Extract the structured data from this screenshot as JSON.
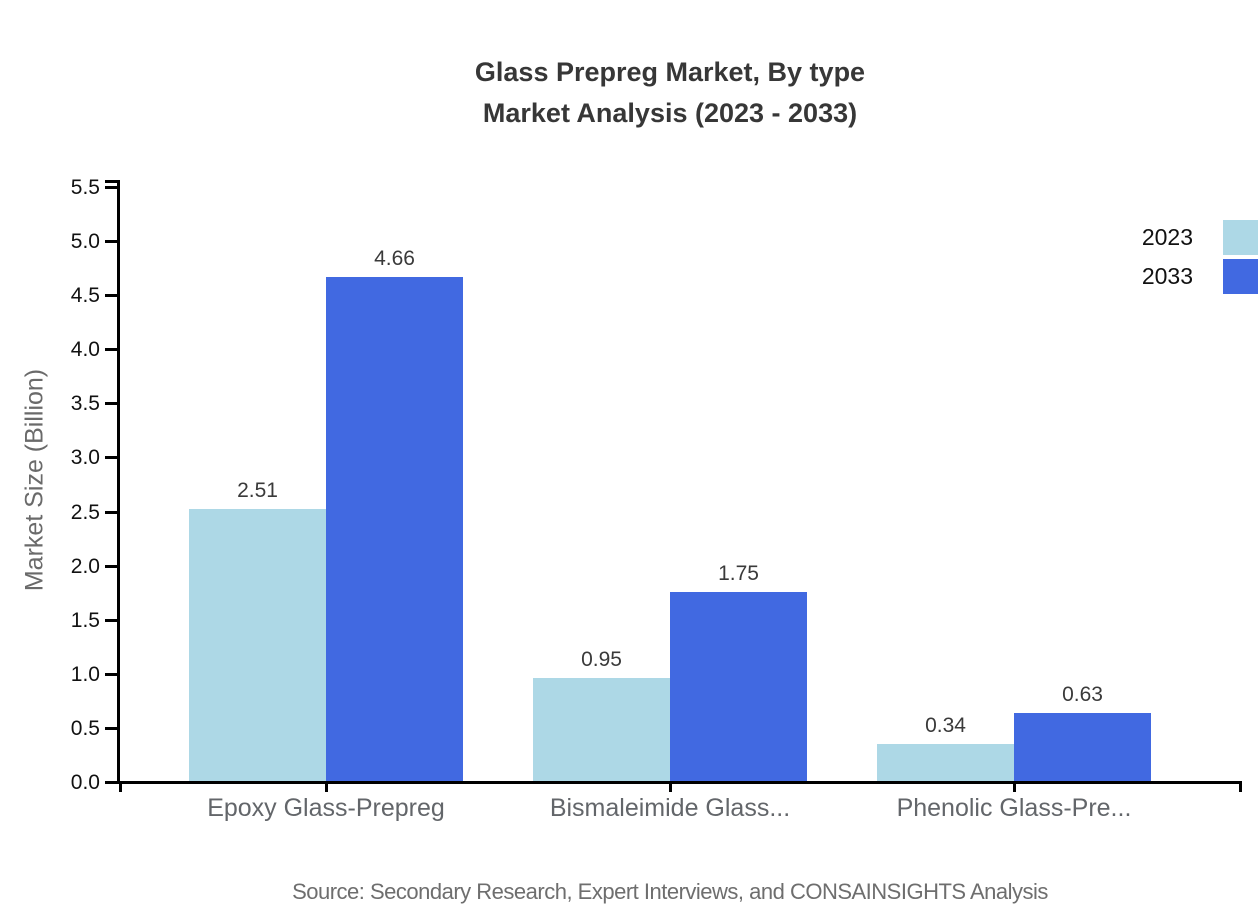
{
  "title": {
    "line1": "Glass Prepreg Market, By type",
    "line2": "Market Analysis (2023 - 2033)"
  },
  "source": "Source: Secondary Research, Expert Interviews, and CONSAINSIGHTS Analysis",
  "legend": [
    {
      "label": "2023",
      "color": "#ADD8E6"
    },
    {
      "label": "2033",
      "color": "#4169E1"
    }
  ],
  "chart_data": {
    "type": "bar",
    "title": "Glass Prepreg Market, By type — Market Analysis (2023 - 2033)",
    "categories": [
      "Epoxy Glass-Prepreg",
      "Bismaleimide Glass...",
      "Phenolic Glass-Pre..."
    ],
    "series": [
      {
        "name": "2023",
        "color": "#ADD8E6",
        "values": [
          2.51,
          0.95,
          0.34
        ]
      },
      {
        "name": "2033",
        "color": "#4169E1",
        "values": [
          4.66,
          1.75,
          0.63
        ]
      }
    ],
    "xlabel": "",
    "ylabel": "Market Size (Billion)",
    "ylim": [
      0,
      5.5
    ],
    "ytick_step": 0.5,
    "grid": false,
    "legend_position": "top-right",
    "value_labels": true
  }
}
